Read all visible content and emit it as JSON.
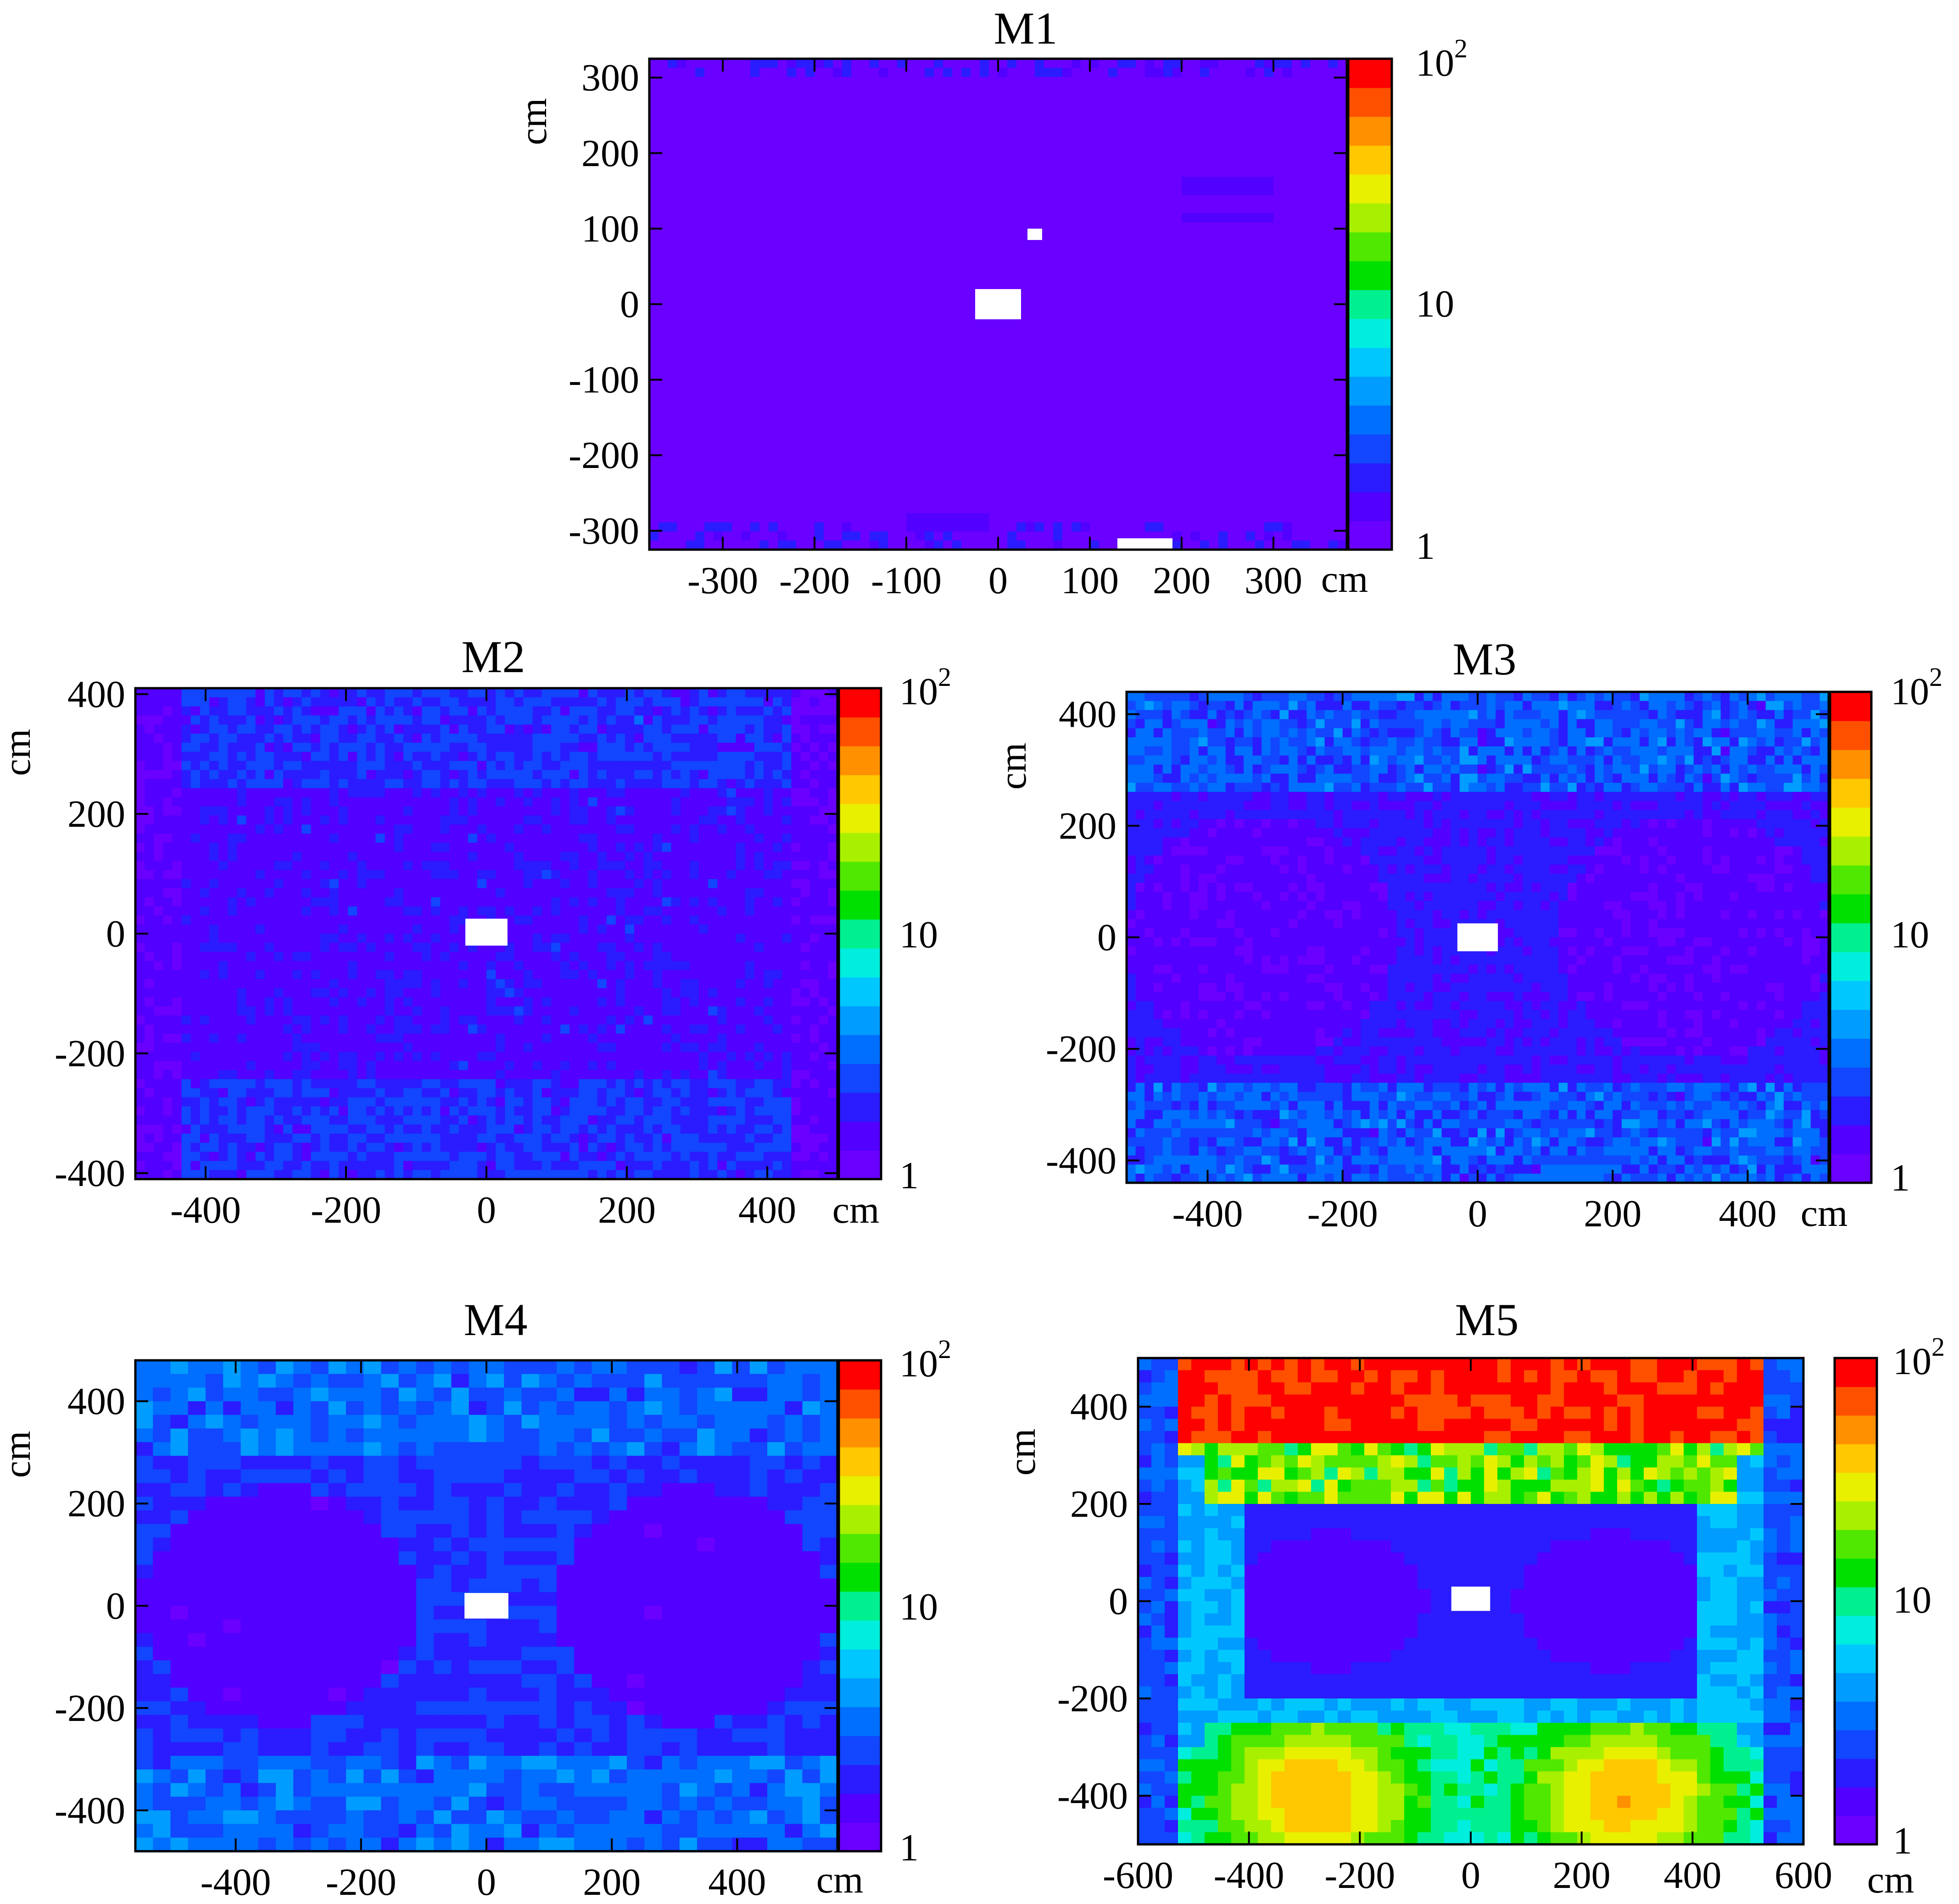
{
  "figure": {
    "panels": [
      "M1",
      "M2",
      "M3",
      "M4",
      "M5"
    ]
  },
  "colors": {
    "background": "#ffffff",
    "hole": "#ffffff",
    "palette": [
      "#6a00ff",
      "#5200ff",
      "#2a1cff",
      "#1246ff",
      "#006eff",
      "#009cff",
      "#00c8ff",
      "#00eedd",
      "#00f090",
      "#00e000",
      "#50e800",
      "#a8f000",
      "#e8f000",
      "#ffc800",
      "#ff9000",
      "#ff5000",
      "#ff0000"
    ]
  },
  "chart_data": [
    {
      "type": "heatmap",
      "panel": "M1",
      "title": "M1",
      "xlabel": "cm",
      "ylabel": "cm",
      "xlim": [
        -380,
        380
      ],
      "ylim": [
        -325,
        325
      ],
      "xticks": [
        -300,
        -200,
        -100,
        0,
        100,
        200,
        300
      ],
      "yticks": [
        -300,
        -200,
        -100,
        0,
        100,
        200,
        300
      ],
      "colorscale": "log",
      "zlim": [
        1,
        100
      ],
      "colorbar_ticks": [
        "1",
        "10",
        "10^2"
      ],
      "uniform_level": 1.0,
      "description_regions": [
        {
          "x": [
            -380,
            380
          ],
          "y": [
            -325,
            325
          ],
          "level": 1.0
        },
        {
          "x": [
            200,
            300
          ],
          "y": [
            145,
            165
          ],
          "level": 1.6
        },
        {
          "x": [
            200,
            300
          ],
          "y": [
            105,
            120
          ],
          "level": 1.6
        },
        {
          "x": [
            -100,
            0
          ],
          "y": [
            -300,
            -290
          ],
          "level": 1.6
        }
      ],
      "holes": [
        {
          "x": [
            -25,
            25
          ],
          "y": [
            -20,
            20
          ]
        },
        {
          "x": [
            32,
            48
          ],
          "y": [
            85,
            100
          ]
        },
        {
          "x": [
            130,
            190
          ],
          "y": [
            -325,
            -310
          ]
        }
      ]
    },
    {
      "type": "heatmap",
      "panel": "M2",
      "title": "M2",
      "xlabel": "cm",
      "ylabel": "cm",
      "xlim": [
        -500,
        500
      ],
      "ylim": [
        -410,
        410
      ],
      "xticks": [
        -400,
        -200,
        0,
        200,
        400
      ],
      "yticks": [
        -400,
        -200,
        0,
        200,
        400
      ],
      "colorscale": "log",
      "zlim": [
        1,
        100
      ],
      "colorbar_ticks": [
        "1",
        "10",
        "10^2"
      ],
      "uniform_level": 1.6,
      "holes": [
        {
          "x": [
            -30,
            30
          ],
          "y": [
            -20,
            25
          ]
        }
      ]
    },
    {
      "type": "heatmap",
      "panel": "M3",
      "title": "M3",
      "xlabel": "cm",
      "ylabel": "cm",
      "xlim": [
        -520,
        520
      ],
      "ylim": [
        -440,
        440
      ],
      "xticks": [
        -400,
        -200,
        0,
        200,
        400
      ],
      "yticks": [
        -400,
        -200,
        0,
        200,
        400
      ],
      "colorscale": "log",
      "zlim": [
        1,
        100
      ],
      "colorbar_ticks": [
        "1",
        "10",
        "10^2"
      ],
      "uniform_level": 1.8,
      "holes": [
        {
          "x": [
            -30,
            30
          ],
          "y": [
            -25,
            25
          ]
        }
      ]
    },
    {
      "type": "heatmap",
      "panel": "M4",
      "title": "M4",
      "xlabel": "cm",
      "ylabel": "cm",
      "xlim": [
        -560,
        560
      ],
      "ylim": [
        -480,
        480
      ],
      "xticks": [
        -400,
        -200,
        0,
        200,
        400
      ],
      "yticks": [
        -400,
        -200,
        0,
        200,
        400
      ],
      "colorscale": "log",
      "zlim": [
        1,
        100
      ],
      "colorbar_ticks": [
        "1",
        "10",
        "10^2"
      ],
      "uniform_level": 2.0,
      "holes": [
        {
          "x": [
            -35,
            35
          ],
          "y": [
            -25,
            25
          ]
        }
      ]
    },
    {
      "type": "heatmap",
      "panel": "M5",
      "title": "M5",
      "xlabel": "cm",
      "ylabel": "cm",
      "xlim": [
        -600,
        600
      ],
      "ylim": [
        -500,
        500
      ],
      "xticks": [
        -600,
        -400,
        -200,
        0,
        200,
        400,
        600
      ],
      "yticks": [
        -400,
        -200,
        0,
        200,
        400
      ],
      "colorscale": "log",
      "zlim": [
        1,
        100
      ],
      "colorbar_ticks": [
        "1",
        "10",
        "10^2"
      ],
      "uniform_level": 3.0,
      "description_regions": [
        {
          "x": [
            -520,
            520
          ],
          "y": [
            320,
            500
          ],
          "level": 90
        },
        {
          "x": [
            -520,
            520
          ],
          "y": [
            200,
            320
          ],
          "level": 15
        },
        {
          "x": [
            -520,
            520
          ],
          "y": [
            -200,
            200
          ],
          "level": 1.8
        },
        {
          "x": [
            -520,
            520
          ],
          "y": [
            -500,
            -200
          ],
          "level": 10
        }
      ],
      "holes": [
        {
          "x": [
            -35,
            35
          ],
          "y": [
            -20,
            30
          ]
        }
      ]
    }
  ]
}
